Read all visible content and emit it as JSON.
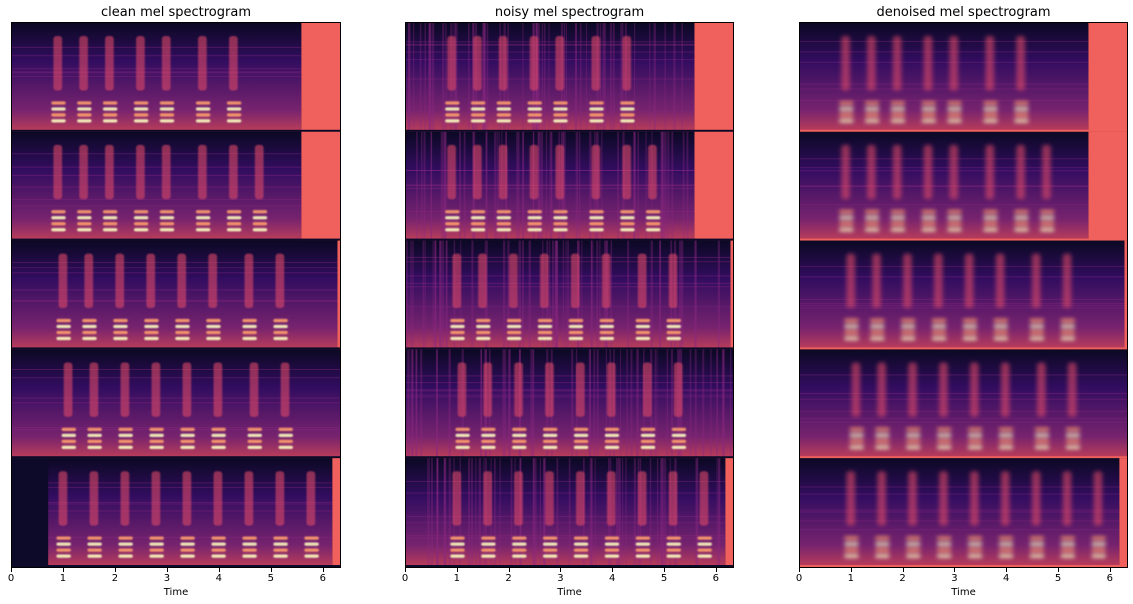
{
  "chart_data": [
    {
      "type": "heatmap",
      "title": "clean mel spectrogram",
      "xlabel": "Time",
      "ylabel": "",
      "xlim": [
        0,
        6.35
      ],
      "xticks": [
        "0",
        "1",
        "2",
        "3",
        "4",
        "5",
        "6"
      ],
      "colormap": "magma",
      "rows": [
        {
          "onset": 0.0,
          "end": 5.6,
          "syllables": [
            0.9,
            1.4,
            1.9,
            2.5,
            3.0,
            3.7,
            4.3
          ]
        },
        {
          "onset": 0.0,
          "end": 5.6,
          "syllables": [
            0.9,
            1.4,
            1.9,
            2.5,
            3.0,
            3.7,
            4.3,
            4.8
          ]
        },
        {
          "onset": 0.0,
          "end": 6.3,
          "syllables": [
            1.0,
            1.5,
            2.1,
            2.7,
            3.3,
            3.9,
            4.6,
            5.2
          ]
        },
        {
          "onset": 0.0,
          "end": 6.35,
          "syllables": [
            1.1,
            1.6,
            2.2,
            2.8,
            3.4,
            4.0,
            4.7,
            5.3
          ]
        },
        {
          "onset": 0.7,
          "end": 6.2,
          "syllables": [
            1.0,
            1.6,
            2.2,
            2.8,
            3.4,
            4.0,
            4.6,
            5.2,
            5.8
          ]
        }
      ]
    },
    {
      "type": "heatmap",
      "title": "noisy mel spectrogram",
      "xlabel": "Time",
      "ylabel": "",
      "xlim": [
        0,
        6.35
      ],
      "xticks": [
        "0",
        "1",
        "2",
        "3",
        "4",
        "5",
        "6"
      ],
      "colormap": "magma",
      "rows": [
        {
          "onset": 0.0,
          "end": 5.6,
          "syllables": [
            0.9,
            1.4,
            1.9,
            2.5,
            3.0,
            3.7,
            4.3
          ]
        },
        {
          "onset": 0.0,
          "end": 5.6,
          "syllables": [
            0.9,
            1.4,
            1.9,
            2.5,
            3.0,
            3.7,
            4.3,
            4.8
          ]
        },
        {
          "onset": 0.0,
          "end": 6.3,
          "syllables": [
            1.0,
            1.5,
            2.1,
            2.7,
            3.3,
            3.9,
            4.6,
            5.2
          ]
        },
        {
          "onset": 0.0,
          "end": 6.35,
          "syllables": [
            1.1,
            1.6,
            2.2,
            2.8,
            3.4,
            4.0,
            4.7,
            5.3
          ]
        },
        {
          "onset": 0.0,
          "end": 6.2,
          "syllables": [
            1.0,
            1.6,
            2.2,
            2.8,
            3.4,
            4.0,
            4.6,
            5.2,
            5.8
          ]
        }
      ]
    },
    {
      "type": "heatmap",
      "title": "denoised mel spectrogram",
      "xlabel": "Time",
      "ylabel": "",
      "xlim": [
        0,
        6.35
      ],
      "xticks": [
        "0",
        "1",
        "2",
        "3",
        "4",
        "5",
        "6"
      ],
      "colormap": "magma",
      "rows": [
        {
          "onset": 0.0,
          "end": 5.6,
          "syllables": [
            0.9,
            1.4,
            1.9,
            2.5,
            3.0,
            3.7,
            4.3
          ]
        },
        {
          "onset": 0.0,
          "end": 5.6,
          "syllables": [
            0.9,
            1.4,
            1.9,
            2.5,
            3.0,
            3.7,
            4.3,
            4.8
          ]
        },
        {
          "onset": 0.0,
          "end": 6.3,
          "syllables": [
            1.0,
            1.5,
            2.1,
            2.7,
            3.3,
            3.9,
            4.6,
            5.2
          ]
        },
        {
          "onset": 0.0,
          "end": 6.35,
          "syllables": [
            1.1,
            1.6,
            2.2,
            2.8,
            3.4,
            4.0,
            4.7,
            5.3
          ]
        },
        {
          "onset": 0.0,
          "end": 6.2,
          "syllables": [
            1.0,
            1.6,
            2.2,
            2.8,
            3.4,
            4.0,
            4.6,
            5.2,
            5.8
          ]
        }
      ]
    }
  ],
  "colors": {
    "background_dark": "#0d0a29",
    "body": "#3b0f70",
    "mid": "#8c2981",
    "hot": "#de4968",
    "bright": "#fe9f6d",
    "peak": "#fcfdbf",
    "padding": "#f0605d"
  }
}
